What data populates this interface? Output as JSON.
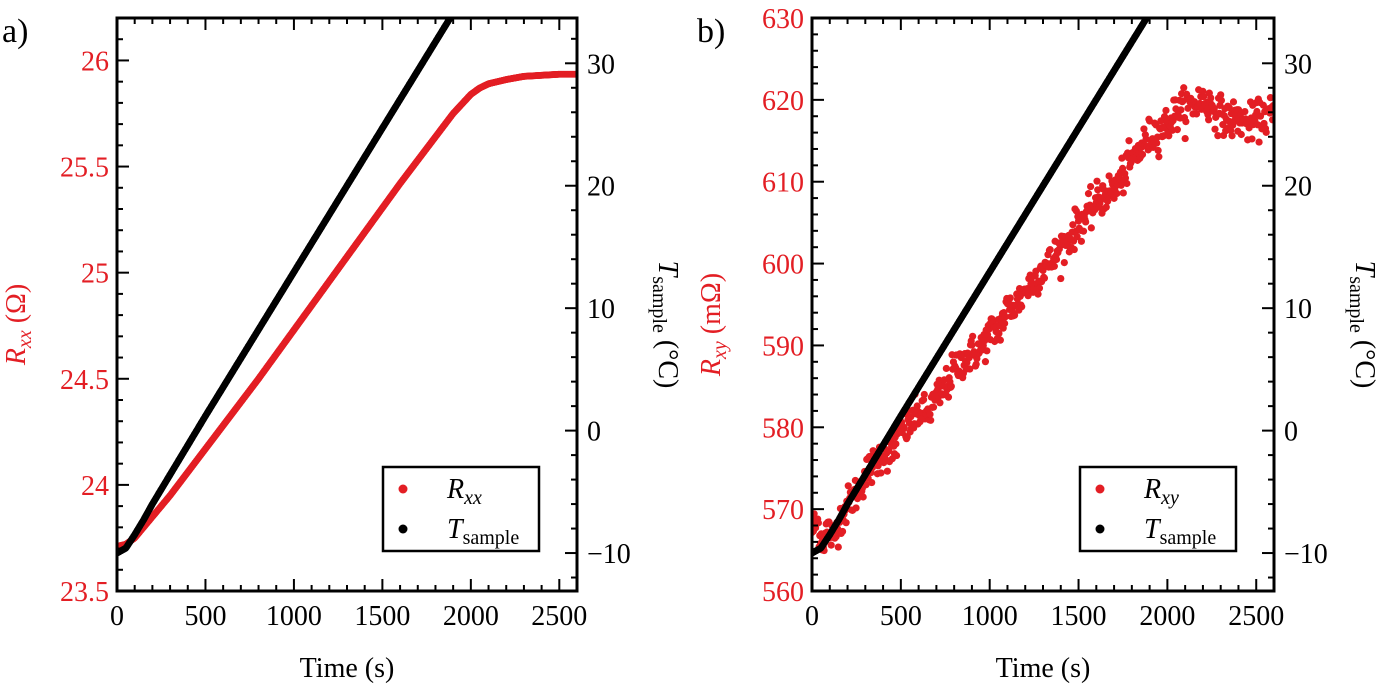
{
  "chart_data": [
    {
      "type": "scatter",
      "panel_label": "a)",
      "xlabel": "Time (s)",
      "ylabel_left": "R_xx (Ω)",
      "ylabel_left_parts": {
        "main": "R",
        "sub": "xx",
        "unit": " (Ω)"
      },
      "ylabel_right": "T_sample (°C)",
      "ylabel_right_parts": {
        "main": "T",
        "sub": "sample",
        "unit": " (°C)"
      },
      "xlim": [
        0,
        2600
      ],
      "ylim_left": [
        23.5,
        26.2
      ],
      "ylim_right": [
        -13.1,
        33.7
      ],
      "x_ticks": [
        0,
        500,
        1000,
        1500,
        2000,
        2500
      ],
      "y_left_ticks": [
        23.5,
        24,
        24.5,
        25,
        25.5,
        26
      ],
      "y_left_tick_labels": [
        "23.5",
        "24",
        "24.5",
        "25",
        "25.5",
        "26"
      ],
      "y_right_ticks": [
        -10,
        0,
        10,
        20,
        30
      ],
      "y_right_tick_labels": [
        "−10",
        "0",
        "10",
        "20",
        "30"
      ],
      "legend_position": "bottom-right",
      "series": [
        {
          "name": "R_xx",
          "legend_parts": {
            "main": "R",
            "sub": "xx"
          },
          "axis": "left",
          "color": "#e31e24",
          "x": [
            0,
            50,
            100,
            150,
            200,
            300,
            400,
            600,
            800,
            1000,
            1200,
            1400,
            1600,
            1800,
            1900,
            2000,
            2050,
            2100,
            2200,
            2300,
            2400,
            2500,
            2600
          ],
          "y": [
            23.71,
            23.72,
            23.75,
            23.8,
            23.85,
            23.95,
            24.06,
            24.28,
            24.5,
            24.73,
            24.96,
            25.19,
            25.42,
            25.64,
            25.75,
            25.84,
            25.87,
            25.89,
            25.91,
            25.925,
            25.93,
            25.935,
            25.935
          ]
        },
        {
          "name": "T_sample",
          "legend_parts": {
            "main": "T",
            "sub": "sample"
          },
          "axis": "right",
          "color": "#000000",
          "x": [
            0,
            50,
            100,
            150,
            200,
            300,
            500,
            700,
            900,
            1100,
            1300,
            1500,
            1700,
            1900,
            2000,
            2050,
            2080,
            2200,
            2400,
            2600
          ],
          "y": [
            -10.0,
            -9.6,
            -8.5,
            -7.3,
            -6.0,
            -3.6,
            1.2,
            5.9,
            10.6,
            15.3,
            20.0,
            24.7,
            29.4,
            34.1,
            36.4,
            37.6,
            38.0,
            38.0,
            38.0,
            38.0
          ]
        }
      ]
    },
    {
      "type": "scatter",
      "panel_label": "b)",
      "xlabel": "Time (s)",
      "ylabel_left": "R_xy (mΩ)",
      "ylabel_left_parts": {
        "main": "R",
        "sub": "xy",
        "unit": " (mΩ)"
      },
      "ylabel_right": "T_sample (°C)",
      "ylabel_right_parts": {
        "main": "T",
        "sub": "sample",
        "unit": " (°C)"
      },
      "xlim": [
        0,
        2600
      ],
      "ylim_left": [
        560,
        630
      ],
      "ylim_right": [
        -13.1,
        33.7
      ],
      "x_ticks": [
        0,
        500,
        1000,
        1500,
        2000,
        2500
      ],
      "y_left_ticks": [
        560,
        570,
        580,
        590,
        600,
        610,
        620,
        630
      ],
      "y_left_tick_labels": [
        "560",
        "570",
        "580",
        "590",
        "600",
        "610",
        "620",
        "630"
      ],
      "y_right_ticks": [
        -10,
        0,
        10,
        20,
        30
      ],
      "y_right_tick_labels": [
        "−10",
        "0",
        "10",
        "20",
        "30"
      ],
      "legend_position": "bottom-right",
      "series": [
        {
          "name": "R_xy",
          "legend_parts": {
            "main": "R",
            "sub": "xy"
          },
          "axis": "left",
          "color": "#e31e24",
          "x": [
            0,
            30,
            60,
            90,
            120,
            150,
            200,
            250,
            300,
            350,
            400,
            450,
            500,
            550,
            600,
            650,
            700,
            750,
            800,
            850,
            900,
            950,
            1000,
            1050,
            1100,
            1150,
            1200,
            1250,
            1300,
            1350,
            1400,
            1450,
            1500,
            1550,
            1600,
            1650,
            1700,
            1750,
            1800,
            1850,
            1900,
            1950,
            2000,
            2050,
            2100,
            2150,
            2200,
            2250,
            2300,
            2350,
            2400,
            2450,
            2500,
            2550,
            2600
          ],
          "y": [
            567.5,
            568.5,
            566.0,
            567.8,
            566.2,
            568.4,
            570.5,
            572.0,
            574.2,
            575.5,
            577.0,
            576.8,
            579.5,
            580.2,
            582.0,
            581.5,
            583.5,
            584.8,
            587.0,
            588.2,
            589.0,
            589.5,
            591.5,
            592.0,
            594.5,
            595.0,
            596.8,
            598.0,
            599.5,
            600.2,
            602.0,
            603.0,
            605.0,
            605.8,
            607.5,
            608.5,
            609.0,
            610.8,
            612.5,
            614.0,
            615.5,
            616.2,
            617.0,
            618.5,
            619.0,
            619.5,
            620.0,
            619.2,
            618.2,
            617.5,
            617.8,
            617.0,
            617.5,
            618.0,
            618.2
          ]
        },
        {
          "name": "T_sample",
          "legend_parts": {
            "main": "T",
            "sub": "sample"
          },
          "axis": "right",
          "color": "#000000",
          "x": [
            0,
            50,
            100,
            150,
            200,
            300,
            500,
            700,
            900,
            1100,
            1300,
            1500,
            1700,
            1900,
            2000,
            2050,
            2080,
            2200,
            2400,
            2600
          ],
          "y": [
            -10.0,
            -9.6,
            -8.5,
            -7.3,
            -6.0,
            -3.6,
            1.2,
            5.9,
            10.6,
            15.3,
            20.0,
            24.7,
            29.4,
            34.1,
            36.4,
            37.6,
            38.0,
            38.0,
            38.0,
            38.0
          ]
        }
      ]
    }
  ]
}
